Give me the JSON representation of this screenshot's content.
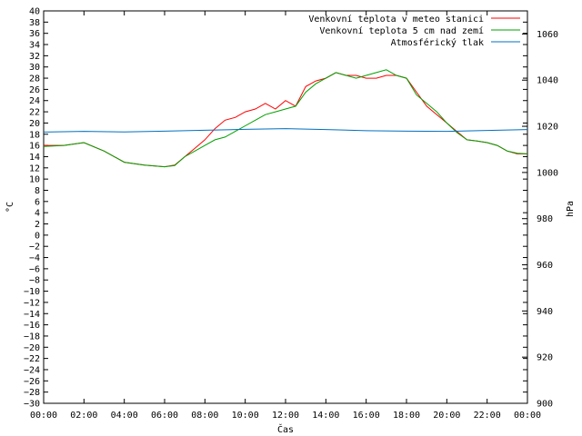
{
  "chart_data": {
    "type": "line",
    "xlabel": "Čas",
    "ylabel_left": "°C",
    "ylabel_right": "hPa",
    "x_ticks": [
      "00:00",
      "02:00",
      "04:00",
      "06:00",
      "08:00",
      "10:00",
      "12:00",
      "14:00",
      "16:00",
      "18:00",
      "20:00",
      "22:00",
      "00:00"
    ],
    "x_range_hours": [
      0,
      24
    ],
    "ylim_left": [
      -30,
      40
    ],
    "ylim_right": [
      900,
      1070
    ],
    "y_ticks_left": [
      40,
      38,
      36,
      34,
      32,
      30,
      28,
      26,
      24,
      22,
      20,
      18,
      16,
      14,
      12,
      10,
      8,
      6,
      4,
      2,
      0,
      -2,
      -4,
      -6,
      -8,
      -10,
      -12,
      -14,
      -16,
      -18,
      -20,
      -22,
      -24,
      -26,
      -28,
      -30
    ],
    "y_ticks_right": [
      1060,
      1040,
      1020,
      1000,
      980,
      960,
      940,
      920,
      900
    ],
    "grid": false,
    "legend_position": "top-right",
    "series": [
      {
        "name": "Venkovní teplota v meteo stanici",
        "color": "#ff0000",
        "axis": "left",
        "x": [
          0,
          1,
          2,
          3,
          4,
          5,
          6,
          6.5,
          7,
          7.5,
          8,
          8.5,
          9,
          9.5,
          10,
          10.5,
          11,
          11.5,
          12,
          12.5,
          13,
          13.5,
          14,
          14.5,
          15,
          15.5,
          16,
          16.5,
          17,
          17.5,
          18,
          18.5,
          19,
          19.5,
          20,
          20.5,
          21,
          21.5,
          22,
          22.5,
          23,
          23.5,
          24
        ],
        "y": [
          16,
          16,
          16.5,
          15,
          13,
          12.5,
          12.2,
          12.5,
          14,
          15.5,
          17,
          19,
          20.5,
          21,
          22,
          22.5,
          23.5,
          22.5,
          24,
          23,
          26.5,
          27.5,
          28,
          29,
          28.5,
          28.5,
          28,
          28,
          28.5,
          28.5,
          28,
          25.5,
          23,
          21.5,
          20,
          18.5,
          17,
          16.8,
          16.5,
          16,
          15,
          14.5,
          14.5
        ]
      },
      {
        "name": "Venkovní teplota 5 cm nad zemí",
        "color": "#00a000",
        "axis": "left",
        "x": [
          0,
          1,
          2,
          3,
          4,
          5,
          6,
          6.5,
          7,
          7.5,
          8,
          8.5,
          9,
          9.5,
          10,
          10.5,
          11,
          11.5,
          12,
          12.5,
          13,
          13.5,
          14,
          14.5,
          15,
          15.5,
          16,
          16.5,
          17,
          17.5,
          18,
          18.5,
          19,
          19.5,
          20,
          20.5,
          21,
          21.5,
          22,
          22.5,
          23,
          23.5,
          24
        ],
        "y": [
          15.8,
          16,
          16.5,
          15,
          13,
          12.5,
          12.2,
          12.4,
          14,
          15,
          16,
          17,
          17.5,
          18.5,
          19.5,
          20.5,
          21.5,
          22,
          22.5,
          23,
          25.5,
          27,
          28,
          29,
          28.5,
          28,
          28.5,
          29,
          29.5,
          28.5,
          28,
          25,
          23.5,
          22,
          20,
          18.3,
          17,
          16.8,
          16.5,
          16,
          15,
          14.6,
          14.5
        ]
      },
      {
        "name": "Atmosférický tlak",
        "color": "#0070c0",
        "axis": "right",
        "x": [
          0,
          2,
          4,
          6,
          8,
          10,
          12,
          14,
          16,
          18,
          20,
          22,
          24
        ],
        "y": [
          1017.5,
          1017.8,
          1017.6,
          1017.9,
          1018.3,
          1018.7,
          1019,
          1018.6,
          1018.1,
          1017.9,
          1017.8,
          1018.2,
          1018.6
        ]
      }
    ]
  }
}
